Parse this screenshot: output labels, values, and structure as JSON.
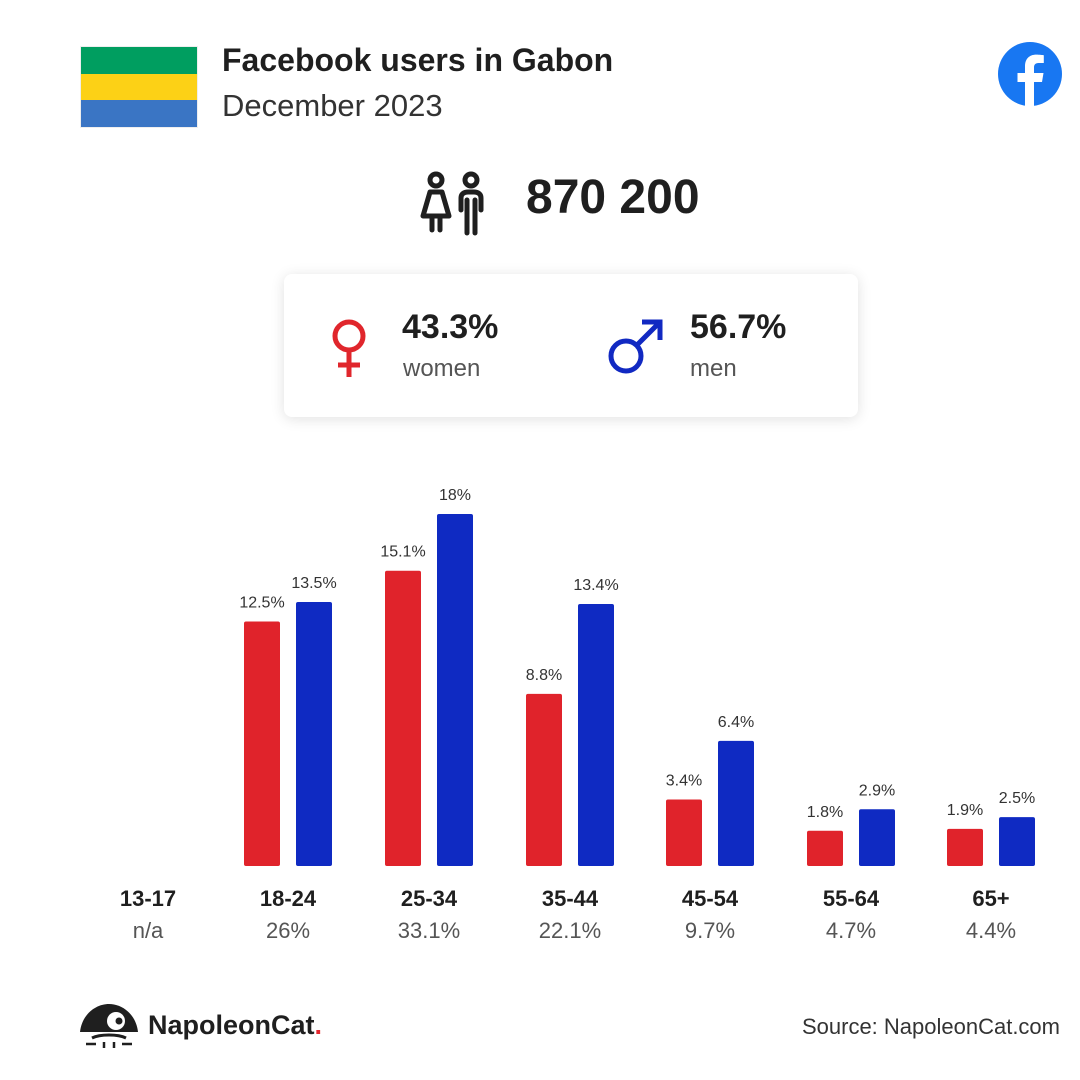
{
  "header": {
    "title": "Facebook users in Gabon",
    "subtitle": "December 2023",
    "flag_colors": [
      "#009E60",
      "#FCD116",
      "#3A75C4"
    ]
  },
  "summary": {
    "total": "870 200",
    "icon": "people-icon"
  },
  "gender": {
    "women": {
      "pct": "43.3%",
      "label": "women",
      "color": "#e0262c",
      "icon": "female-symbol-icon"
    },
    "men": {
      "pct": "56.7%",
      "label": "men",
      "color": "#1129c2",
      "icon": "male-symbol-icon"
    }
  },
  "chart_data": {
    "type": "bar",
    "categories": [
      "13-17",
      "18-24",
      "25-34",
      "35-44",
      "45-54",
      "55-64",
      "65+"
    ],
    "category_totals": [
      "n/a",
      "26%",
      "33.1%",
      "22.1%",
      "9.7%",
      "4.7%",
      "4.4%"
    ],
    "series": [
      {
        "values": [
          null,
          12.5,
          15.1,
          8.8,
          3.4,
          1.8,
          1.9
        ],
        "labels": [
          "",
          "12.5%",
          "15.1%",
          "8.8%",
          "3.4%",
          "1.8%",
          "1.9%"
        ],
        "color": "#e0232b"
      },
      {
        "values": [
          null,
          13.5,
          18,
          13.4,
          6.4,
          2.9,
          2.5
        ],
        "labels": [
          "",
          "13.5%",
          "18%",
          "13.4%",
          "6.4%",
          "2.9%",
          "2.5%"
        ],
        "color": "#0f2ac2"
      }
    ],
    "ylim": [
      0,
      18
    ],
    "grid": false,
    "legend": "none"
  },
  "footer": {
    "brand_name": "NapoleonCat",
    "brand_dot": ".",
    "source": "Source: NapoleonCat.com"
  }
}
